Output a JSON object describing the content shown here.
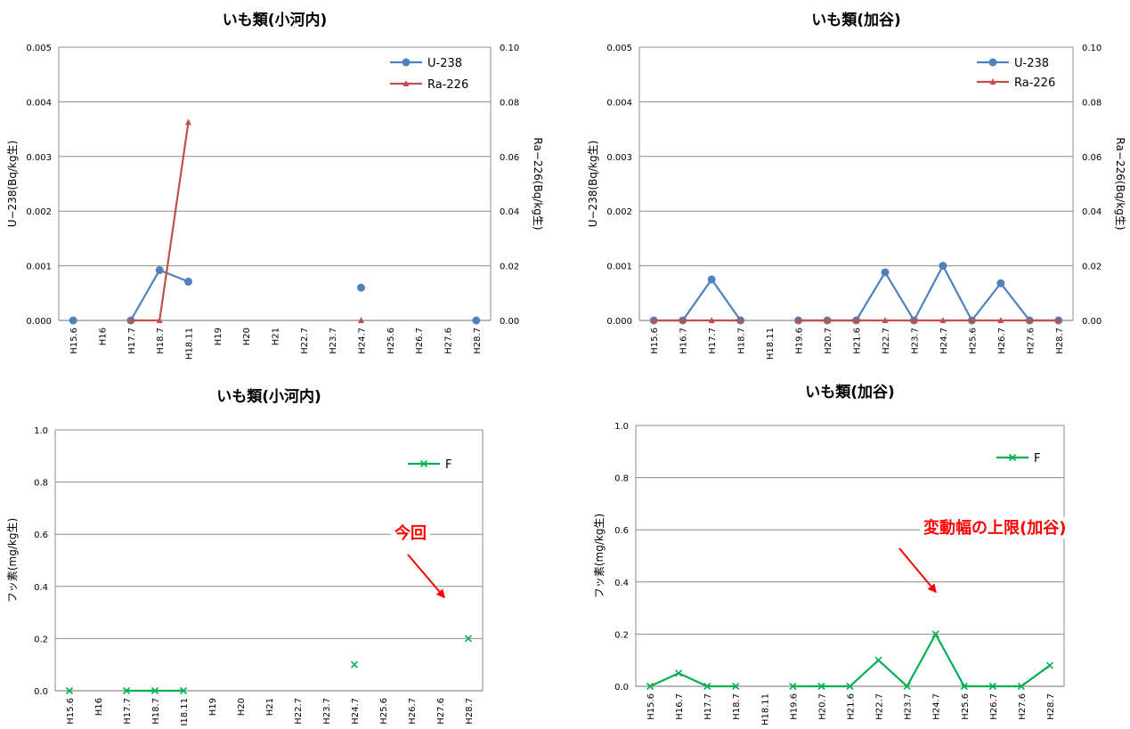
{
  "chart_data": [
    {
      "type": "line",
      "title": "いも類(小河内)",
      "ylabel": "U−238(Bq/kg生)",
      "y2label": "Ra−226(Bq/kg生)",
      "categories": [
        "H15.6",
        "H16",
        "H17.7",
        "H18.7",
        "H18.11",
        "H19",
        "H20",
        "H21",
        "H22.7",
        "H23.7",
        "H24.7",
        "H25.6",
        "H26.7",
        "H27.6",
        "H28.7"
      ],
      "ylim": [
        0,
        0.005
      ],
      "yticks": [
        "0.000",
        "0.001",
        "0.002",
        "0.003",
        "0.004",
        "0.005"
      ],
      "y2lim": [
        0,
        0.1
      ],
      "y2ticks": [
        "0.00",
        "0.02",
        "0.04",
        "0.06",
        "0.08",
        "0.10"
      ],
      "grid": true,
      "legend_position": "top-right",
      "series": [
        {
          "name": "U-238",
          "axis": "left",
          "color": "#4f81bd",
          "marker": "circle",
          "values": [
            0,
            null,
            0,
            0.00092,
            0.00071,
            null,
            null,
            null,
            null,
            null,
            0.0006,
            null,
            null,
            null,
            0
          ]
        },
        {
          "name": "Ra-226",
          "axis": "right",
          "color": "#c0504d",
          "marker": "triangle",
          "values": [
            null,
            null,
            0,
            0,
            0.0725,
            null,
            null,
            null,
            null,
            null,
            0,
            null,
            null,
            null,
            null
          ]
        }
      ]
    },
    {
      "type": "line",
      "title": "いも類(加谷)",
      "ylabel": "U−238(Bq/kg生)",
      "y2label": "Ra−226(Bq/kg生)",
      "categories": [
        "H15.6",
        "H16.7",
        "H17.7",
        "H18.7",
        "H18.11",
        "H19.6",
        "H20.7",
        "H21.6",
        "H22.7",
        "H23.7",
        "H24.7",
        "H25.6",
        "H26.7",
        "H27.6",
        "H28.7"
      ],
      "ylim": [
        0,
        0.005
      ],
      "yticks": [
        "0.000",
        "0.001",
        "0.002",
        "0.003",
        "0.004",
        "0.005"
      ],
      "y2lim": [
        0,
        0.1
      ],
      "y2ticks": [
        "0.00",
        "0.02",
        "0.04",
        "0.06",
        "0.08",
        "0.10"
      ],
      "grid": true,
      "legend_position": "top-right",
      "series": [
        {
          "name": "U-238",
          "axis": "left",
          "color": "#4f81bd",
          "marker": "circle",
          "values": [
            0,
            0,
            0.00075,
            0,
            null,
            0,
            0,
            0,
            0.00088,
            0,
            0.001,
            0,
            0.00068,
            0,
            0
          ]
        },
        {
          "name": "Ra-226",
          "axis": "right",
          "color": "#c0504d",
          "marker": "triangle",
          "values": [
            0,
            0,
            0,
            0,
            null,
            0,
            0,
            0,
            0,
            0,
            0,
            0,
            0,
            0,
            0
          ]
        }
      ]
    },
    {
      "type": "line",
      "title": "いも類(小河内)",
      "ylabel": "フッ素(mg/kg生)",
      "categories": [
        "H15.6",
        "H16",
        "H17.7",
        "H18.7",
        "H18.11",
        "H19",
        "H20",
        "H21",
        "H22.7",
        "H23.7",
        "H24.7",
        "H25.6",
        "H26.7",
        "H27.6",
        "H28.7"
      ],
      "ylim": [
        0,
        1.0
      ],
      "yticks": [
        "0.0",
        "0.2",
        "0.4",
        "0.6",
        "0.8",
        "1.0"
      ],
      "grid": true,
      "legend_position": "top-right",
      "series": [
        {
          "name": "F",
          "color": "#00b050",
          "marker": "x",
          "values": [
            0,
            null,
            0,
            0,
            0,
            null,
            null,
            null,
            null,
            null,
            0.1,
            null,
            null,
            null,
            0.2
          ]
        }
      ],
      "annotation": {
        "text": "今回",
        "color": "#ff0000"
      }
    },
    {
      "type": "line",
      "title": "いも類(加谷)",
      "ylabel": "フッ素(mg/kg生)",
      "categories": [
        "H15.6",
        "H16.7",
        "H17.7",
        "H18.7",
        "H18.11",
        "H19.6",
        "H20.7",
        "H21.6",
        "H22.7",
        "H23.7",
        "H24.7",
        "H25.6",
        "H26.7",
        "H27.6",
        "H28.7"
      ],
      "ylim": [
        0,
        1.0
      ],
      "yticks": [
        "0.0",
        "0.2",
        "0.4",
        "0.6",
        "0.8",
        "1.0"
      ],
      "grid": true,
      "legend_position": "top-right",
      "series": [
        {
          "name": "F",
          "color": "#00b050",
          "marker": "x",
          "values": [
            0,
            0.05,
            0,
            0,
            null,
            0,
            0,
            0,
            0.1,
            0,
            0.2,
            0,
            0,
            0,
            0.08
          ]
        }
      ],
      "annotation": {
        "text": "変動幅の上限(加谷)",
        "color": "#ff0000"
      }
    }
  ]
}
